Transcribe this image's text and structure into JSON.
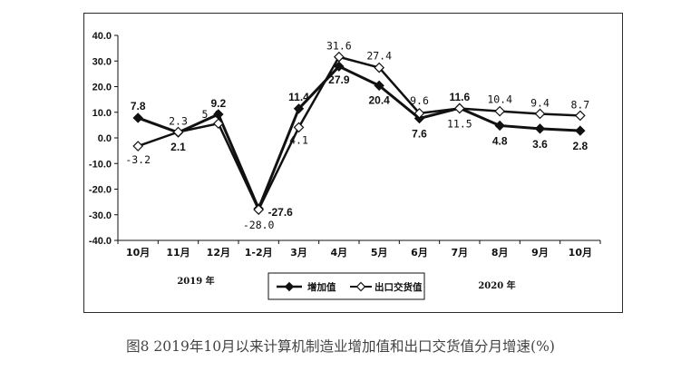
{
  "caption": "图8 2019年10月以来计算机制造业增加值和出口交货值分月增速(%)",
  "year_labels": [
    "2019 年",
    "2020 年"
  ],
  "chart_data": {
    "type": "line",
    "categories": [
      "10月",
      "11月",
      "12月",
      "1-2月",
      "3月",
      "4月",
      "5月",
      "6月",
      "7月",
      "8月",
      "9月",
      "10月"
    ],
    "ylim": [
      -40,
      40
    ],
    "yticks": [
      "40.0",
      "30.0",
      "20.0",
      "10.0",
      "0.0",
      "-10.0",
      "-20.0",
      "-30.0",
      "-40.0"
    ],
    "grid": false,
    "legend_position": "bottom-center",
    "series": [
      {
        "name": "增加值",
        "marker": "filled-diamond",
        "color": "#111111",
        "values": [
          7.8,
          2.1,
          9.2,
          -27.6,
          11.4,
          27.9,
          20.4,
          7.6,
          11.6,
          4.8,
          3.6,
          2.8
        ],
        "labels": [
          "7.8",
          "2.1",
          "9.2",
          "-27.6",
          "11.4",
          "27.9",
          "20.4",
          "7.6",
          "11.6",
          "4.8",
          "3.6",
          "2.8"
        ]
      },
      {
        "name": "出口交货值",
        "marker": "open-diamond",
        "color": "#111111",
        "values": [
          -3.2,
          2.3,
          5.6,
          -28.0,
          4.1,
          31.6,
          27.4,
          9.6,
          11.5,
          10.4,
          9.4,
          8.7
        ],
        "labels": [
          "-3.2",
          "2.3",
          "5.6",
          "-28.0",
          "4.1",
          "31.6",
          "27.4",
          "9.6",
          "11.5",
          "10.4",
          "9.4",
          "8.7"
        ]
      }
    ]
  }
}
